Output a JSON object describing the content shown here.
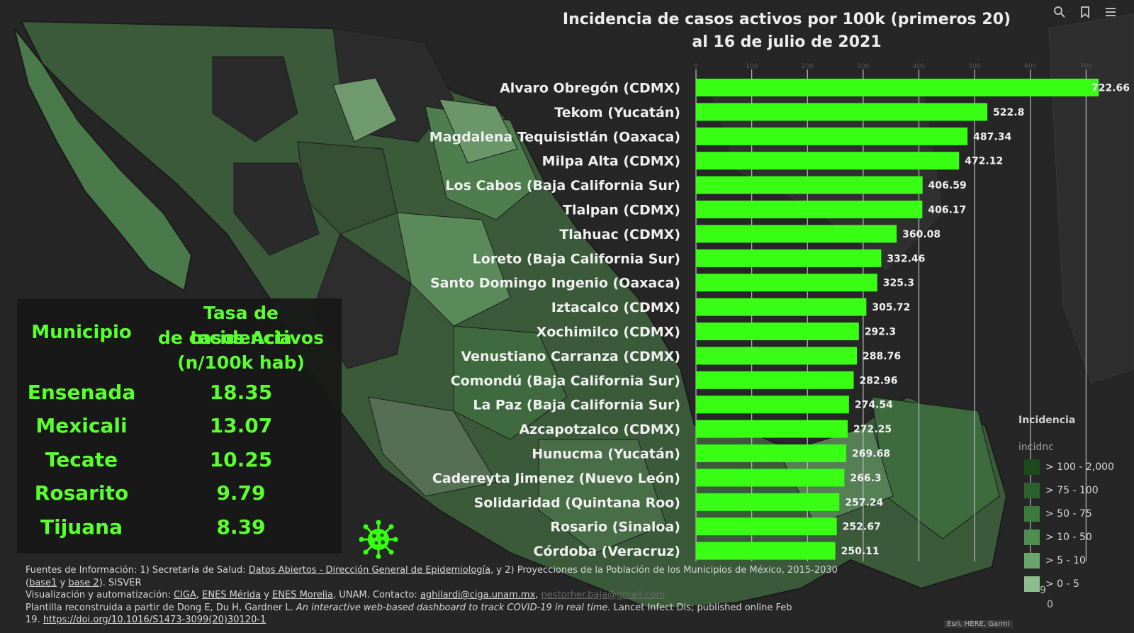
{
  "toolbar": {
    "icons": [
      "search-icon",
      "bookmark-icon",
      "list-icon"
    ]
  },
  "chart_data": {
    "type": "bar",
    "orientation": "horizontal",
    "title": "Incidencia de casos activos por 100k (primeros 20)",
    "subtitle": "al 16 de julio de 2021",
    "bar_color": "#39ff14",
    "xlim": [
      0,
      800
    ],
    "ticks": [
      0,
      100,
      200,
      300,
      400,
      500,
      600,
      700
    ],
    "tick_labels": [
      "0",
      "100",
      "200",
      "300",
      "400",
      "500",
      "600",
      "700"
    ],
    "categories": [
      "Alvaro Obregón (CDMX)",
      "Tekom (Yucatán)",
      "Magdalena Tequisistlán (Oaxaca)",
      "Milpa Alta (CDMX)",
      "Los Cabos (Baja California Sur)",
      "Tlalpan (CDMX)",
      "Tlahuac (CDMX)",
      "Loreto (Baja California Sur)",
      "Santo Domingo Ingenio (Oaxaca)",
      "Iztacalco (CDMX)",
      "Xochimilco (CDMX)",
      "Venustiano Carranza (CDMX)",
      "Comondú (Baja California Sur)",
      "La Paz (Baja California Sur)",
      "Azcapotzalco (CDMX)",
      "Hunucma (Yucatán)",
      "Cadereyta Jimenez (Nuevo León)",
      "Solidaridad (Quintana Roo)",
      "Rosario (Sinaloa)",
      "Córdoba (Veracruz)"
    ],
    "values": [
      722.66,
      522.8,
      487.34,
      472.12,
      406.59,
      406.17,
      360.08,
      332.46,
      325.3,
      305.72,
      292.3,
      288.76,
      282.96,
      274.54,
      272.25,
      269.68,
      266.3,
      257.24,
      252.67,
      250.11
    ],
    "value_labels": [
      "722.66",
      "522.8",
      "487.34",
      "472.12",
      "406.59",
      "406.17",
      "360.08",
      "332.46",
      "325.3",
      "305.72",
      "292.3",
      "288.76",
      "282.96",
      "274.54",
      "272.25",
      "269.68",
      "266.3",
      "257.24",
      "252.67",
      "250.11"
    ]
  },
  "table": {
    "header_municipio": "Municipio",
    "header_tasa": [
      "Tasa de Incidencia",
      "de casos Activos",
      "(n/100k hab)"
    ],
    "rows": [
      {
        "municipio": "Ensenada",
        "tasa": "18.35"
      },
      {
        "municipio": "Mexicali",
        "tasa": "13.07"
      },
      {
        "municipio": "Tecate",
        "tasa": "10.25"
      },
      {
        "municipio": "Rosarito",
        "tasa": "9.79"
      },
      {
        "municipio": "Tijuana",
        "tasa": "8.39"
      }
    ]
  },
  "footer": {
    "l1_a": "Fuentes de Información: 1) Secretaría de Salud: ",
    "l1_link": "Datos Abiertos - Dirección General de Epidemiología",
    "l1_b": ", y 2) Proyecciones de la Población de los Municipios de México, 2015-2030",
    "l2_open": "(",
    "l2_base1": "base1",
    "l2_y": " y ",
    "l2_base2": "base 2",
    "l2_end": "). SISVER",
    "l3_a": "Visualización y automatización: ",
    "l3_ciga": "CIGA",
    "l3_sep1": ", ",
    "l3_merida": "ENES Mérida",
    "l3_y": " y ",
    "l3_morelia": "ENES Morelia",
    "l3_b": ", UNAM. Contacto: ",
    "l3_email1": "aghilardi@ciga.unam.mx",
    "l3_sep2": ", ",
    "l3_email2": "nestorher.baja@gmail.com",
    "l4_a": "Plantilla reconstruida a partir de Dong E, Du H, Gardner L. ",
    "l4_italic": "An interactive web-based dashboard to track COVID-19 in real time.",
    "l4_b": " Lancet Infect Dis; published online Feb",
    "l5_a": "19. ",
    "l5_link": "https://doi.org/10.1016/S1473-3099(20)30120-1"
  },
  "legend": {
    "title": "Incidencia",
    "subtitle": "incidnc",
    "items": [
      {
        "label": "> 100 - 2,000",
        "color": "#1d4a1d"
      },
      {
        "label": "> 75 - 100",
        "color": "#2c602c"
      },
      {
        "label": "> 50 - 75",
        "color": "#3d7a3d"
      },
      {
        "label": "> 10 - 50",
        "color": "#4f8e4f"
      },
      {
        "label": "> 5 - 10",
        "color": "#6ba56b"
      },
      {
        "label": "> 0 - 5",
        "color": "#8dbd8d"
      }
    ],
    "zero_label": "0",
    "stray_label": "9"
  },
  "credit": "Esri, HERE, Garmi"
}
